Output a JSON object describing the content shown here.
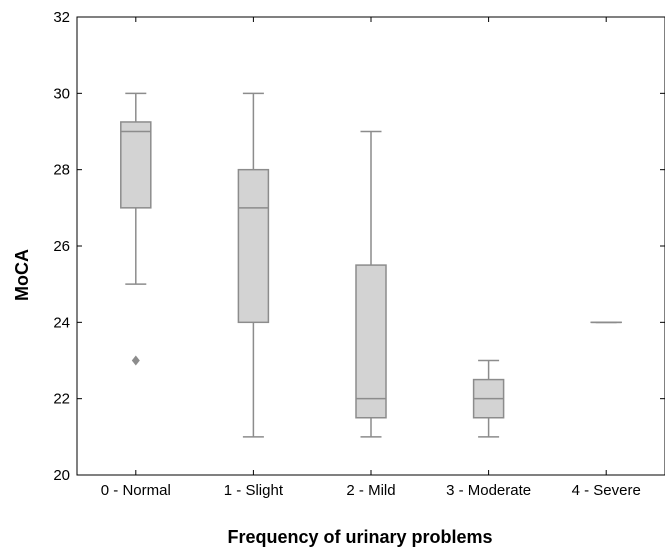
{
  "chart_data": {
    "type": "box",
    "title": "",
    "xlabel": "Frequency of urinary problems",
    "ylabel": "MoCA",
    "ylim": [
      20,
      32
    ],
    "yticks": [
      20,
      22,
      24,
      26,
      28,
      30,
      32
    ],
    "grid": false,
    "categories": [
      "0 - Normal",
      "1 - Slight",
      "2 - Mild",
      "3 - Moderate",
      "4 - Severe"
    ],
    "boxes": [
      {
        "category": "0 - Normal",
        "whisker_low": 25,
        "q1": 27,
        "median": 29,
        "q3": 29.25,
        "whisker_high": 30,
        "outliers": [
          23
        ]
      },
      {
        "category": "1 - Slight",
        "whisker_low": 21,
        "q1": 24,
        "median": 27,
        "q3": 28,
        "whisker_high": 30,
        "outliers": []
      },
      {
        "category": "2 - Mild",
        "whisker_low": 21,
        "q1": 21.5,
        "median": 22,
        "q3": 25.5,
        "whisker_high": 29,
        "outliers": []
      },
      {
        "category": "3 - Moderate",
        "whisker_low": 21,
        "q1": 21.5,
        "median": 22,
        "q3": 22.5,
        "whisker_high": 23,
        "outliers": []
      },
      {
        "category": "4 - Severe",
        "whisker_low": 24,
        "q1": 24,
        "median": 24,
        "q3": 24,
        "whisker_high": 24,
        "outliers": []
      }
    ],
    "colors": {
      "box_fill": "#d3d3d3",
      "box_stroke": "#8c8c8c",
      "axis": "#000000"
    }
  }
}
